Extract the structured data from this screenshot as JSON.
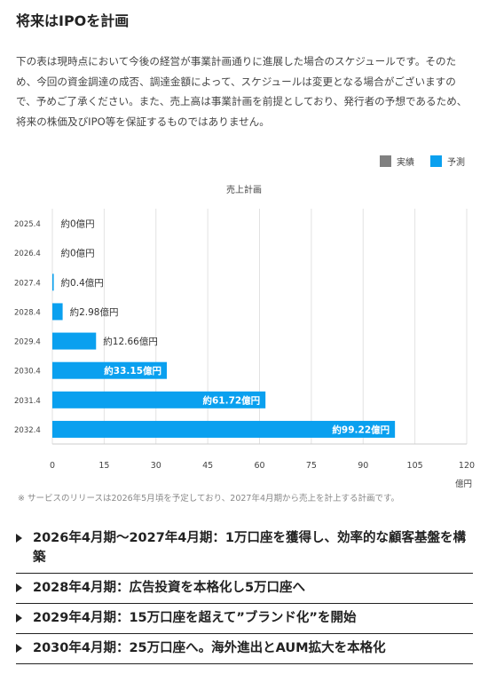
{
  "page": {
    "title": "将来はIPOを計画",
    "intro": "下の表は現時点において今後の経営が事業計画通りに進展した場合のスケジュールです。そのため、今回の資金調達の成否、調達金額によって、スケジュールは変更となる場合がございますので、予めご了承ください。また、売上高は事業計画を前提としており、発行者の予想であるため、将来の株価及びIPO等を保証するものではありません。",
    "footnote": "※ サービスのリリースは2026年5月頃を予定しており、2027年4月期から売上を計上する計画です。"
  },
  "legend": [
    {
      "label": "実績",
      "color": "#808080"
    },
    {
      "label": "予測",
      "color": "#0aa0ef"
    }
  ],
  "chart_data": {
    "type": "bar",
    "orientation": "horizontal",
    "title": "売上計画",
    "xlabel": "億円",
    "ylabel": "",
    "categories": [
      "2025.4",
      "2026.4",
      "2027.4",
      "2028.4",
      "2029.4",
      "2030.4",
      "2031.4",
      "2032.4"
    ],
    "series": [
      {
        "name": "予測",
        "color": "#0aa0ef",
        "values": [
          0,
          0,
          0.4,
          2.98,
          12.66,
          33.15,
          61.72,
          99.22
        ],
        "labels": [
          "約0億円",
          "約0億円",
          "約0.4億円",
          "約2.98億円",
          "約12.66億円",
          "約33.15億円",
          "約61.72億円",
          "約99.22億円"
        ]
      }
    ],
    "xlim": [
      0,
      120
    ],
    "xticks": [
      "0",
      "15",
      "30",
      "45",
      "60",
      "75",
      "90",
      "105",
      "120"
    ],
    "grid": true
  },
  "plans": [
    "2026年4月期〜2027年4月期：1万口座を獲得し、効率的な顧客基盤を構築",
    "2028年4月期：広告投資を本格化し5万口座へ",
    "2029年4月期：15万口座を超えて”ブランド化”を開始",
    "2030年4月期：25万口座へ。海外進出とAUM拡大を本格化"
  ]
}
